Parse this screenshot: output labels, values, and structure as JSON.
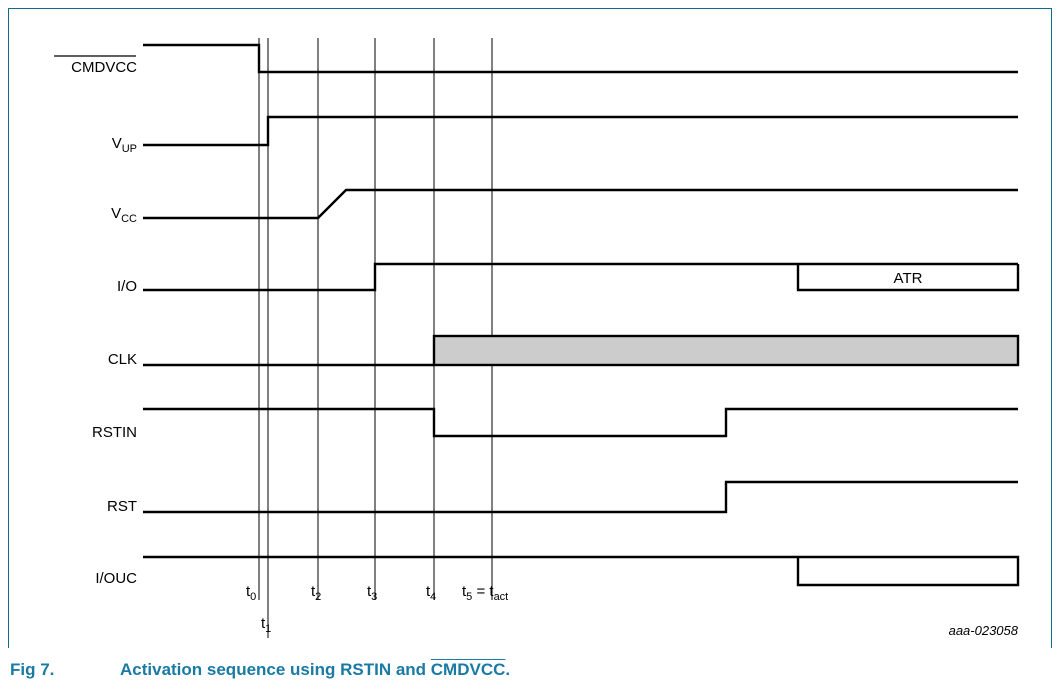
{
  "signals": [
    {
      "id": "cmdvcc",
      "name": "CMDVCC",
      "overline": true
    },
    {
      "id": "vup",
      "name": "V",
      "sub": "UP"
    },
    {
      "id": "vcc",
      "name": "V",
      "sub": "CC"
    },
    {
      "id": "io",
      "name": "I/O"
    },
    {
      "id": "clk",
      "name": "CLK"
    },
    {
      "id": "rstin",
      "name": "RSTIN"
    },
    {
      "id": "rst",
      "name": "RST"
    },
    {
      "id": "iouc",
      "name": "I/OUC"
    }
  ],
  "time_markers": [
    {
      "id": "t0",
      "base": "t",
      "sub": "0"
    },
    {
      "id": "t1",
      "base": "t",
      "sub": "1"
    },
    {
      "id": "t2",
      "base": "t",
      "sub": "2"
    },
    {
      "id": "t3",
      "base": "t",
      "sub": "3"
    },
    {
      "id": "t4",
      "base": "t",
      "sub": "4"
    },
    {
      "id": "t5",
      "base": "t",
      "sub": "5",
      "suffix": " = t",
      "suffix_sub": "act"
    }
  ],
  "io_segment_label": "ATR",
  "reference_code": "aaa-023058",
  "caption": {
    "number": "Fig 7.",
    "text_before": "Activation sequence using RSTIN and ",
    "text_overline": "CMDVCC",
    "text_after": "."
  },
  "colors": {
    "caption": "#1a7aa3",
    "frame": "#0b6f86",
    "clk_fill": "#cccccc"
  }
}
